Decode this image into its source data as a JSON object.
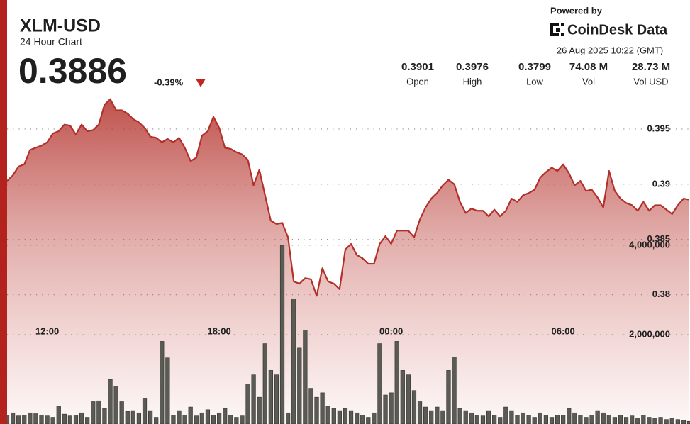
{
  "chart_data": {
    "type": "line",
    "title": "XLM-USD",
    "subtitle": "24 Hour Chart",
    "categories": [
      null,
      null,
      null,
      null,
      null,
      null,
      null,
      "12:00",
      null,
      null,
      null,
      null,
      null,
      null,
      null,
      null,
      null,
      null,
      null,
      null,
      null,
      null,
      null,
      null,
      null,
      null,
      null,
      null,
      null,
      null,
      null,
      null,
      null,
      null,
      null,
      null,
      null,
      "18:00",
      null,
      null,
      null,
      null,
      null,
      null,
      null,
      null,
      null,
      null,
      null,
      null,
      null,
      null,
      null,
      null,
      null,
      null,
      null,
      null,
      null,
      null,
      null,
      null,
      null,
      null,
      null,
      null,
      null,
      "00:00",
      null,
      null,
      null,
      null,
      null,
      null,
      null,
      null,
      null,
      null,
      null,
      null,
      null,
      null,
      null,
      null,
      null,
      null,
      null,
      null,
      null,
      null,
      null,
      null,
      null,
      null,
      null,
      null,
      null,
      "06:00",
      null,
      null,
      null,
      null,
      null,
      null,
      null,
      null,
      null,
      null,
      null,
      null,
      null,
      null,
      null,
      null,
      null,
      null,
      null,
      null,
      null,
      null
    ],
    "series": [
      {
        "type": "line",
        "color": "#b3302a",
        "values": [
          0.3903,
          0.3908,
          0.3916,
          0.3918,
          0.3931,
          0.3933,
          0.3935,
          0.3938,
          0.3946,
          0.3948,
          0.3954,
          0.3953,
          0.3945,
          0.3954,
          0.3948,
          0.3949,
          0.3954,
          0.3972,
          0.3977,
          0.3967,
          0.3967,
          0.3964,
          0.3959,
          0.3956,
          0.3951,
          0.3943,
          0.3942,
          0.3938,
          0.3941,
          0.3938,
          0.3942,
          0.3933,
          0.3921,
          0.3924,
          0.3944,
          0.3948,
          0.3961,
          0.3951,
          0.3933,
          0.3932,
          0.3929,
          0.3927,
          0.3922,
          0.3899,
          0.3913,
          0.389,
          0.3867,
          0.3864,
          0.3865,
          0.3852,
          0.3812,
          0.381,
          0.3815,
          0.3814,
          0.3799,
          0.3824,
          0.3812,
          0.381,
          0.3805,
          0.3841,
          0.3846,
          0.3836,
          0.3833,
          0.3828,
          0.3828,
          0.3846,
          0.3853,
          0.3846,
          0.3858,
          0.3858,
          0.3858,
          0.3852,
          0.3868,
          0.3879,
          0.3887,
          0.3892,
          0.3899,
          0.3904,
          0.39,
          0.3884,
          0.3874,
          0.3878,
          0.3876,
          0.3876,
          0.3871,
          0.3877,
          0.3871,
          0.3876,
          0.3887,
          0.3884,
          0.389,
          0.3892,
          0.3895,
          0.3906,
          0.3911,
          0.3915,
          0.3912,
          0.3918,
          0.391,
          0.3899,
          0.3903,
          0.3894,
          0.3895,
          0.3888,
          0.3879,
          0.3912,
          0.3894,
          0.3887,
          0.3883,
          0.3881,
          0.3876,
          0.3884,
          0.3876,
          0.3881,
          0.3881,
          0.3877,
          0.3873,
          0.3881,
          0.3887,
          0.3886
        ]
      },
      {
        "type": "bar",
        "axis": "y2",
        "color": "#5b5b55",
        "values": [
          200000,
          250000,
          180000,
          200000,
          250000,
          230000,
          200000,
          180000,
          150000,
          400000,
          220000,
          180000,
          200000,
          250000,
          150000,
          500000,
          520000,
          350000,
          1000000,
          850000,
          500000,
          280000,
          300000,
          250000,
          580000,
          300000,
          150000,
          1850000,
          1480000,
          200000,
          300000,
          200000,
          380000,
          180000,
          250000,
          320000,
          200000,
          250000,
          350000,
          200000,
          150000,
          180000,
          900000,
          1100000,
          600000,
          1800000,
          1200000,
          1100000,
          4000000,
          250000,
          2800000,
          1700000,
          2100000,
          800000,
          600000,
          700000,
          400000,
          350000,
          300000,
          350000,
          300000,
          250000,
          200000,
          150000,
          250000,
          1800000,
          650000,
          700000,
          1850000,
          1200000,
          1100000,
          750000,
          500000,
          380000,
          300000,
          380000,
          300000,
          1200000,
          1500000,
          350000,
          300000,
          250000,
          200000,
          180000,
          300000,
          200000,
          150000,
          380000,
          300000,
          200000,
          250000,
          200000,
          150000,
          250000,
          200000,
          150000,
          200000,
          200000,
          350000,
          250000,
          200000,
          150000,
          200000,
          300000,
          250000,
          200000,
          150000,
          200000,
          150000,
          180000,
          120000,
          200000,
          150000,
          120000,
          150000,
          100000,
          120000,
          100000,
          80000,
          60000
        ]
      }
    ],
    "ylim": [
      0.3683,
      0.4
    ],
    "yticks": [
      0.38,
      0.385,
      0.39,
      0.395
    ],
    "y2lim": [
      0,
      7840000
    ],
    "y2ticks": [
      {
        "value": 2000000,
        "label": "2,000,000"
      },
      {
        "value": 4000000,
        "label": "4,000,000"
      }
    ],
    "grid": true
  },
  "header": {
    "price": "0.3886",
    "change": "-0.39%",
    "powered_by": "Powered by",
    "brand": "CoinDesk Data",
    "timestamp": "26 Aug 2025 10:22 (GMT)",
    "stats": [
      {
        "value": "0.3901",
        "label": "Open"
      },
      {
        "value": "0.3976",
        "label": "High"
      },
      {
        "value": "0.3799",
        "label": "Low"
      },
      {
        "value": "74.08 M",
        "label": "Vol"
      },
      {
        "value": "28.73 M",
        "label": "Vol USD"
      }
    ]
  }
}
